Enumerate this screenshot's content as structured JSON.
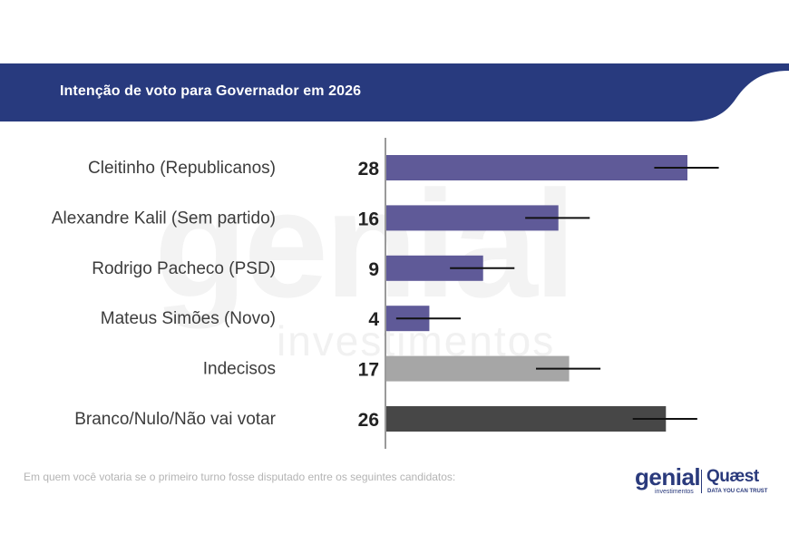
{
  "header": {
    "title": "Intenção de voto para Governador em 2026"
  },
  "watermark": {
    "main": "genial",
    "sub": "investimentos"
  },
  "footnote": "Em quem você votaria se o primeiro turno fosse disputado entre os seguintes candidatos:",
  "logos": {
    "genial": {
      "name": "genial",
      "sub": "investimentos"
    },
    "quaest": {
      "name": "Quæst",
      "tagline": "DATA YOU CAN TRUST"
    }
  },
  "colors": {
    "header_bg": "#283a7e",
    "candidate_bar": "#5f5a98",
    "undecided_bar": "#a6a6a6",
    "blank_bar": "#474747",
    "error_line": "#111111"
  },
  "chart_data": {
    "type": "bar",
    "orientation": "horizontal",
    "categories": [
      "Cleitinho (Republicanos)",
      "Alexandre Kalil (Sem partido)",
      "Rodrigo Pacheco (PSD)",
      "Mateus Simões (Novo)",
      "Indecisos",
      "Branco/Nulo/Não vai votar"
    ],
    "values": [
      28,
      16,
      9,
      4,
      17,
      26
    ],
    "value_labels": [
      "28",
      "16",
      "9",
      "4",
      "17",
      "26"
    ],
    "bar_colors": [
      "#5f5a98",
      "#5f5a98",
      "#5f5a98",
      "#5f5a98",
      "#a6a6a6",
      "#474747"
    ],
    "error_margin": 3,
    "xlim": [
      0,
      30
    ],
    "title": "",
    "xlabel": "",
    "ylabel": "",
    "grid": false,
    "legend": "none"
  }
}
